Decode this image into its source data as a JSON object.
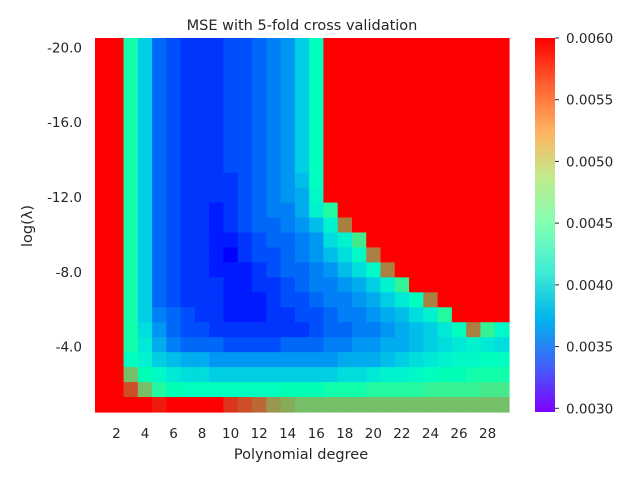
{
  "chart_data": {
    "type": "heatmap",
    "title": "MSE with 5-fold cross validation",
    "xlabel": "Polynomial degree",
    "ylabel": "log(λ)",
    "x": [
      1,
      2,
      3,
      4,
      5,
      6,
      7,
      8,
      9,
      10,
      11,
      12,
      13,
      14,
      15,
      16,
      17,
      18,
      19,
      20,
      21,
      22,
      23,
      24,
      25,
      26,
      27,
      28,
      29
    ],
    "x_tick_labels": [
      "2",
      "4",
      "6",
      "8",
      "10",
      "12",
      "14",
      "16",
      "18",
      "20",
      "22",
      "24",
      "26",
      "28"
    ],
    "x_tick_values": [
      2,
      4,
      6,
      8,
      10,
      12,
      14,
      16,
      18,
      20,
      22,
      24,
      26,
      28
    ],
    "y_range": [
      -20.5,
      -0.5
    ],
    "y_rows": 25,
    "y_tick_labels": [
      "-20.0",
      "-16.0",
      "-12.0",
      "-8.0",
      "-4.0"
    ],
    "y_tick_values": [
      -20,
      -16,
      -12,
      -8,
      -4
    ],
    "colorbar": {
      "min": 0.003,
      "max": 0.006,
      "ticks": [
        "0.0060",
        "0.0055",
        "0.0050",
        "0.0045",
        "0.0040",
        "0.0035",
        "0.0030"
      ],
      "tick_values": [
        0.006,
        0.0055,
        0.005,
        0.0045,
        0.004,
        0.0035,
        0.003
      ],
      "colormap": "rainbow"
    },
    "values": [
      [
        0.006,
        0.006,
        0.0046,
        0.0039,
        0.0034,
        0.0033,
        0.0032,
        0.0032,
        0.0032,
        0.0033,
        0.0033,
        0.0034,
        0.0035,
        0.0036,
        0.0039,
        0.0044,
        0.006,
        0.006,
        0.006,
        0.006,
        0.006,
        0.006,
        0.006,
        0.006,
        0.006,
        0.006,
        0.006,
        0.006,
        0.006
      ],
      [
        0.006,
        0.006,
        0.0046,
        0.0039,
        0.0034,
        0.0033,
        0.0032,
        0.0032,
        0.0032,
        0.0033,
        0.0033,
        0.0034,
        0.0035,
        0.0036,
        0.0039,
        0.0044,
        0.006,
        0.006,
        0.006,
        0.006,
        0.006,
        0.006,
        0.006,
        0.006,
        0.006,
        0.006,
        0.006,
        0.006,
        0.006
      ],
      [
        0.006,
        0.006,
        0.0046,
        0.0039,
        0.0034,
        0.0033,
        0.0032,
        0.0032,
        0.0032,
        0.0033,
        0.0033,
        0.0034,
        0.0035,
        0.0036,
        0.0039,
        0.0044,
        0.006,
        0.006,
        0.006,
        0.006,
        0.006,
        0.006,
        0.006,
        0.006,
        0.006,
        0.006,
        0.006,
        0.006,
        0.006
      ],
      [
        0.006,
        0.006,
        0.0046,
        0.0039,
        0.0034,
        0.0033,
        0.0032,
        0.0032,
        0.0032,
        0.0033,
        0.0033,
        0.0034,
        0.0035,
        0.0036,
        0.0039,
        0.0044,
        0.006,
        0.006,
        0.006,
        0.006,
        0.006,
        0.006,
        0.006,
        0.006,
        0.006,
        0.006,
        0.006,
        0.006,
        0.006
      ],
      [
        0.006,
        0.006,
        0.0046,
        0.0039,
        0.0034,
        0.0033,
        0.0032,
        0.0032,
        0.0032,
        0.0033,
        0.0033,
        0.0034,
        0.0035,
        0.0036,
        0.0039,
        0.0044,
        0.006,
        0.006,
        0.006,
        0.006,
        0.006,
        0.006,
        0.006,
        0.006,
        0.006,
        0.006,
        0.006,
        0.006,
        0.006
      ],
      [
        0.006,
        0.006,
        0.0046,
        0.0039,
        0.0034,
        0.0033,
        0.0032,
        0.0032,
        0.0032,
        0.0033,
        0.0033,
        0.0034,
        0.0035,
        0.0036,
        0.0039,
        0.0044,
        0.006,
        0.006,
        0.006,
        0.006,
        0.006,
        0.006,
        0.006,
        0.006,
        0.006,
        0.006,
        0.006,
        0.006,
        0.006
      ],
      [
        0.006,
        0.006,
        0.0046,
        0.0039,
        0.0034,
        0.0033,
        0.0032,
        0.0032,
        0.0032,
        0.0033,
        0.0033,
        0.0034,
        0.0035,
        0.0036,
        0.0039,
        0.0044,
        0.006,
        0.006,
        0.006,
        0.006,
        0.006,
        0.006,
        0.006,
        0.006,
        0.006,
        0.006,
        0.006,
        0.006,
        0.006
      ],
      [
        0.006,
        0.006,
        0.0046,
        0.0039,
        0.0034,
        0.0033,
        0.0032,
        0.0032,
        0.0032,
        0.0033,
        0.0033,
        0.0034,
        0.0035,
        0.0036,
        0.0039,
        0.0044,
        0.006,
        0.006,
        0.006,
        0.006,
        0.006,
        0.006,
        0.006,
        0.006,
        0.006,
        0.006,
        0.006,
        0.006,
        0.006
      ],
      [
        0.006,
        0.006,
        0.0046,
        0.0039,
        0.0034,
        0.0033,
        0.0032,
        0.0032,
        0.0032,
        0.0033,
        0.0033,
        0.0034,
        0.0035,
        0.0036,
        0.0039,
        0.0044,
        0.006,
        0.006,
        0.006,
        0.006,
        0.006,
        0.006,
        0.006,
        0.006,
        0.006,
        0.006,
        0.006,
        0.006,
        0.006
      ],
      [
        0.006,
        0.006,
        0.0046,
        0.0039,
        0.0034,
        0.0033,
        0.0032,
        0.0032,
        0.0032,
        0.0032,
        0.0033,
        0.0034,
        0.0035,
        0.0036,
        0.0038,
        0.0044,
        0.006,
        0.006,
        0.006,
        0.006,
        0.006,
        0.006,
        0.006,
        0.006,
        0.006,
        0.006,
        0.006,
        0.006,
        0.006
      ],
      [
        0.006,
        0.006,
        0.0046,
        0.0039,
        0.0034,
        0.0033,
        0.0032,
        0.0032,
        0.0032,
        0.0032,
        0.0033,
        0.0034,
        0.0035,
        0.0036,
        0.0037,
        0.0043,
        0.006,
        0.006,
        0.006,
        0.006,
        0.006,
        0.006,
        0.006,
        0.006,
        0.006,
        0.006,
        0.006,
        0.006,
        0.006
      ],
      [
        0.006,
        0.006,
        0.0046,
        0.0039,
        0.0034,
        0.0033,
        0.0032,
        0.0032,
        0.0031,
        0.0032,
        0.0033,
        0.0034,
        0.0035,
        0.0035,
        0.0037,
        0.0042,
        0.0047,
        0.006,
        0.006,
        0.006,
        0.006,
        0.006,
        0.006,
        0.006,
        0.006,
        0.006,
        0.006,
        0.006,
        0.006
      ],
      [
        0.006,
        0.006,
        0.0046,
        0.0039,
        0.0034,
        0.0033,
        0.0032,
        0.0032,
        0.0031,
        0.0032,
        0.0033,
        0.0034,
        0.0034,
        0.0035,
        0.0036,
        0.0038,
        0.0042,
        0.0055,
        0.006,
        0.006,
        0.006,
        0.006,
        0.006,
        0.006,
        0.006,
        0.006,
        0.006,
        0.006,
        0.006
      ],
      [
        0.006,
        0.006,
        0.0046,
        0.0039,
        0.0034,
        0.0033,
        0.0032,
        0.0032,
        0.0031,
        0.0031,
        0.0032,
        0.0033,
        0.0034,
        0.0034,
        0.0035,
        0.0036,
        0.004,
        0.0042,
        0.0049,
        0.006,
        0.006,
        0.006,
        0.006,
        0.006,
        0.006,
        0.006,
        0.006,
        0.006,
        0.006
      ],
      [
        0.006,
        0.006,
        0.0046,
        0.0039,
        0.0034,
        0.0033,
        0.0032,
        0.0032,
        0.0031,
        0.003,
        0.0032,
        0.0033,
        0.0033,
        0.0034,
        0.0035,
        0.0036,
        0.0038,
        0.004,
        0.0043,
        0.0055,
        0.006,
        0.006,
        0.006,
        0.006,
        0.006,
        0.006,
        0.006,
        0.006,
        0.006
      ],
      [
        0.006,
        0.006,
        0.0046,
        0.0039,
        0.0034,
        0.0033,
        0.0032,
        0.0032,
        0.0031,
        0.0031,
        0.0031,
        0.0032,
        0.0033,
        0.0034,
        0.0034,
        0.0035,
        0.0036,
        0.0038,
        0.004,
        0.0043,
        0.0055,
        0.006,
        0.006,
        0.006,
        0.006,
        0.006,
        0.006,
        0.006,
        0.006
      ],
      [
        0.006,
        0.006,
        0.0046,
        0.0039,
        0.0034,
        0.0033,
        0.0032,
        0.0032,
        0.0032,
        0.0031,
        0.0031,
        0.0032,
        0.0032,
        0.0033,
        0.0034,
        0.0035,
        0.0035,
        0.0036,
        0.0037,
        0.0039,
        0.0042,
        0.0048,
        0.006,
        0.006,
        0.006,
        0.006,
        0.006,
        0.006,
        0.006
      ],
      [
        0.006,
        0.006,
        0.0046,
        0.0039,
        0.0034,
        0.0033,
        0.0032,
        0.0032,
        0.0032,
        0.0031,
        0.0031,
        0.0031,
        0.0032,
        0.0033,
        0.0033,
        0.0034,
        0.0035,
        0.0035,
        0.0036,
        0.0037,
        0.0039,
        0.0041,
        0.0044,
        0.0055,
        0.006,
        0.006,
        0.006,
        0.006,
        0.006
      ],
      [
        0.006,
        0.006,
        0.0046,
        0.0039,
        0.0035,
        0.0034,
        0.0033,
        0.0032,
        0.0032,
        0.0031,
        0.0031,
        0.0031,
        0.0032,
        0.0032,
        0.0033,
        0.0033,
        0.0034,
        0.0035,
        0.0035,
        0.0036,
        0.0037,
        0.0038,
        0.004,
        0.0042,
        0.0047,
        0.006,
        0.006,
        0.006,
        0.006
      ],
      [
        0.006,
        0.006,
        0.0046,
        0.004,
        0.0036,
        0.0034,
        0.0033,
        0.0033,
        0.0032,
        0.0032,
        0.0032,
        0.0032,
        0.0032,
        0.0032,
        0.0032,
        0.0033,
        0.0034,
        0.0034,
        0.0035,
        0.0035,
        0.0036,
        0.0037,
        0.0038,
        0.0039,
        0.0041,
        0.0044,
        0.0055,
        0.0048,
        0.0043
      ],
      [
        0.006,
        0.006,
        0.0046,
        0.0041,
        0.0037,
        0.0035,
        0.0034,
        0.0034,
        0.0034,
        0.0033,
        0.0033,
        0.0033,
        0.0033,
        0.0034,
        0.0034,
        0.0034,
        0.0035,
        0.0035,
        0.0036,
        0.0036,
        0.0037,
        0.0037,
        0.0038,
        0.0039,
        0.004,
        0.0041,
        0.0042,
        0.0041,
        0.004
      ],
      [
        0.006,
        0.006,
        0.0044,
        0.0042,
        0.0039,
        0.0038,
        0.0037,
        0.0037,
        0.0036,
        0.0036,
        0.0036,
        0.0036,
        0.0036,
        0.0036,
        0.0036,
        0.0036,
        0.0036,
        0.0037,
        0.0037,
        0.0037,
        0.0038,
        0.0039,
        0.004,
        0.0041,
        0.0042,
        0.0043,
        0.0043,
        0.0044,
        0.0044
      ],
      [
        0.006,
        0.006,
        0.0052,
        0.0045,
        0.0043,
        0.0041,
        0.004,
        0.004,
        0.0039,
        0.0039,
        0.0039,
        0.0039,
        0.0039,
        0.0039,
        0.0039,
        0.0039,
        0.0039,
        0.004,
        0.004,
        0.0041,
        0.0042,
        0.0042,
        0.0043,
        0.0044,
        0.0045,
        0.0045,
        0.0046,
        0.0046,
        0.0046
      ],
      [
        0.006,
        0.006,
        0.0057,
        0.0052,
        0.0047,
        0.0045,
        0.0044,
        0.0044,
        0.0044,
        0.0044,
        0.0044,
        0.0044,
        0.0044,
        0.0045,
        0.0045,
        0.0045,
        0.0046,
        0.0046,
        0.0046,
        0.0047,
        0.0047,
        0.0047,
        0.0047,
        0.0048,
        0.0048,
        0.0048,
        0.0048,
        0.0049,
        0.0049
      ],
      [
        0.006,
        0.006,
        0.006,
        0.006,
        0.0059,
        0.006,
        0.006,
        0.006,
        0.006,
        0.0058,
        0.0057,
        0.0056,
        0.0054,
        0.0053,
        0.0052,
        0.0052,
        0.0052,
        0.0052,
        0.0052,
        0.0052,
        0.0052,
        0.0052,
        0.0052,
        0.0052,
        0.0052,
        0.0052,
        0.0052,
        0.0052,
        0.0052
      ]
    ]
  }
}
